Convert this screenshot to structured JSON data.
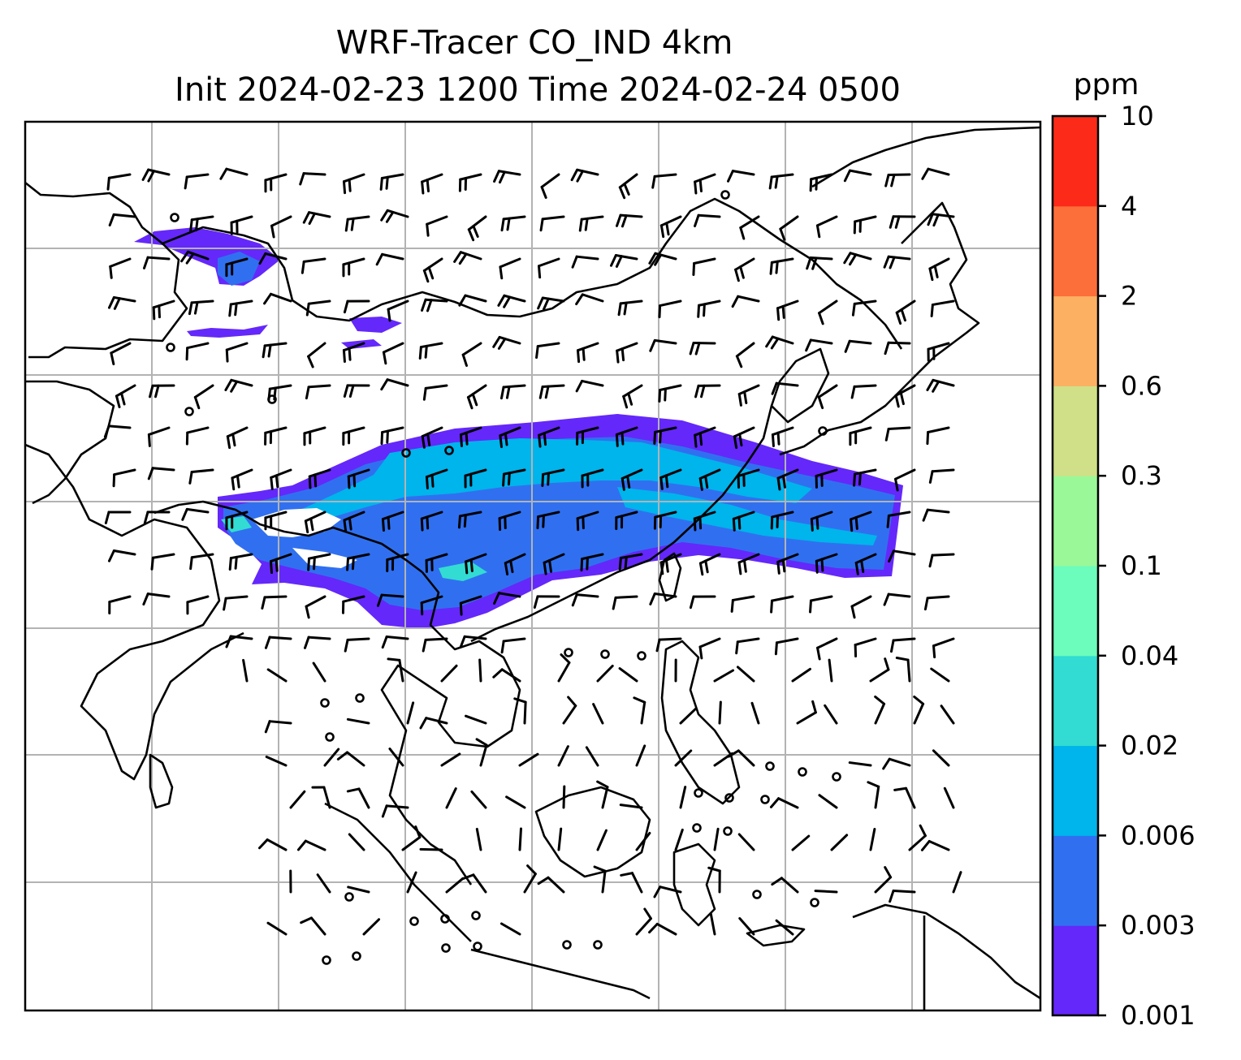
{
  "title": {
    "line1": "WRF-Tracer CO_IND 4km",
    "line2": "Init 2024-02-23 1200 Time 2024-02-24 0500"
  },
  "colorbar": {
    "unit": "ppm",
    "levels": [
      "0.001",
      "0.003",
      "0.006",
      "0.02",
      "0.04",
      "0.1",
      "0.3",
      "0.6",
      "2",
      "4",
      "10"
    ],
    "colors": [
      "#6428fa",
      "#3070f0",
      "#00b4ec",
      "#32dcd2",
      "#6cfcbc",
      "#9af898",
      "#d0e088",
      "#fcb062",
      "#fc6e3a",
      "#fc2a18"
    ]
  },
  "map": {
    "background": "#ffffff",
    "coastline_color": "#000000",
    "gridline_color": "#b3b3b3"
  }
}
